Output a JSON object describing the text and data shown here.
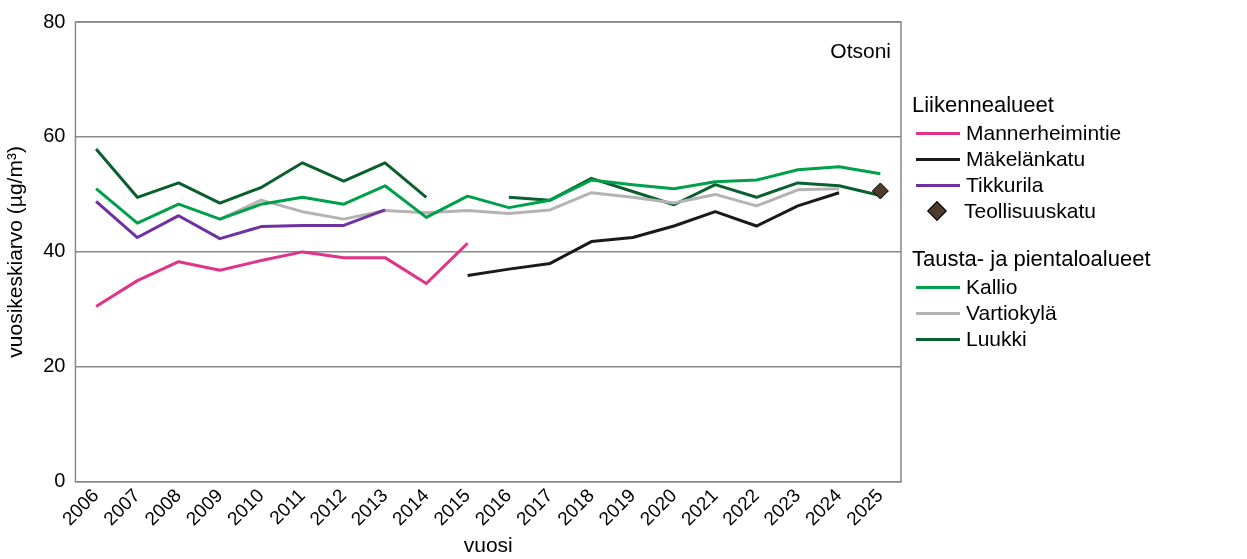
{
  "chart_data": {
    "type": "line",
    "xlabel": "vuosi",
    "ylabel": "vuosikeskiarvo (µg/m³)",
    "legend_title": "Liikennealueet",
    "annotations": [
      "Otsoni",
      "Tausta- ja pientaloalueet"
    ],
    "categories": [
      "2006",
      "2007",
      "2008",
      "2009",
      "2010",
      "2011",
      "2012",
      "2013",
      "2014",
      "2015",
      "2016",
      "2017",
      "2018",
      "2019",
      "2020",
      "2021",
      "2022",
      "2023",
      "2024",
      "2025"
    ],
    "ylim": [
      0,
      80
    ],
    "yticks": [
      0,
      20,
      40,
      60,
      80
    ],
    "grid": "y",
    "legend": "right",
    "marker": "none",
    "line_style": "solid",
    "series": [
      {
        "name": "Mannerheimintie",
        "color": "#e0338a",
        "values": [
          30.5,
          35,
          38.3,
          36.8,
          38.5,
          40,
          39,
          39,
          34.5,
          41.5,
          null,
          null,
          null,
          null,
          null,
          null,
          null,
          null,
          null,
          null
        ]
      },
      {
        "name": "Mäkelänkatu",
        "color": "#1a1a1a",
        "values": [
          null,
          null,
          null,
          null,
          null,
          null,
          null,
          null,
          null,
          35.9,
          37,
          38,
          41.8,
          42.5,
          44.5,
          47,
          44.5,
          48,
          50.3,
          null
        ]
      },
      {
        "name": "Tikkurila",
        "color": "#7030a0",
        "values": [
          48.8,
          42.5,
          46.3,
          42.3,
          44.4,
          44.6,
          44.6,
          47.3,
          null,
          null,
          null,
          null,
          null,
          null,
          null,
          null,
          null,
          null,
          null,
          null
        ]
      },
      {
        "name": "Teollisuuskatu",
        "color": "#4d3b2e",
        "type": "scatter",
        "marker": "diamond",
        "values": [
          null,
          null,
          null,
          null,
          null,
          null,
          null,
          null,
          null,
          null,
          null,
          null,
          null,
          null,
          null,
          null,
          null,
          null,
          null,
          50.6
        ]
      },
      {
        "name": "Kallio",
        "color": "#00a04a",
        "values": [
          51,
          45,
          48.3,
          45.7,
          48.3,
          49.5,
          48.3,
          51.5,
          46,
          49.7,
          47.7,
          49,
          52.5,
          51.7,
          51,
          52.2,
          52.5,
          54.3,
          54.8,
          53.6
        ]
      },
      {
        "name": "Vartiokylä",
        "color": "#b3b3b3",
        "values": [
          null,
          null,
          null,
          45.7,
          49,
          47,
          45.7,
          47.2,
          46.8,
          47.2,
          46.7,
          47.3,
          50.3,
          49.5,
          48.5,
          50,
          48,
          50.8,
          51,
          null
        ]
      },
      {
        "name": "Luukki",
        "color": "#0b5e2e",
        "values": [
          57.9,
          49.5,
          52,
          48.5,
          51.2,
          55.5,
          52.3,
          55.5,
          49.5,
          null,
          49.5,
          49,
          52.8,
          50.5,
          48.2,
          51.7,
          49.5,
          52,
          51.5,
          49.8
        ]
      }
    ]
  }
}
